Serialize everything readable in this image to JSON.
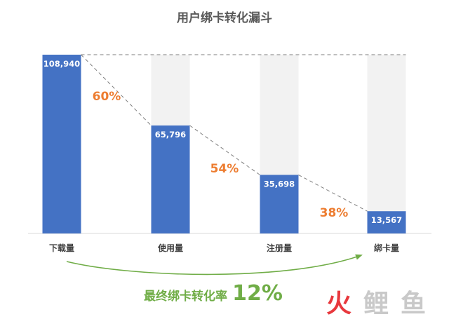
{
  "chart_data": {
    "type": "bar",
    "title": "用户绑卡转化漏斗",
    "categories": [
      "下载量",
      "使用量",
      "注册量",
      "绑卡量"
    ],
    "values": [
      108940,
      65796,
      35698,
      13567
    ],
    "value_labels": [
      "108,940",
      "65,796",
      "35,698",
      "13,567"
    ],
    "step_rates": [
      "60%",
      "54%",
      "38%"
    ],
    "final_rate_label": "最终绑卡转化率",
    "final_rate_value": "12%",
    "ylim": [
      0,
      108940
    ],
    "grid": false,
    "legend": "none",
    "colors": {
      "bar": "#4472c4",
      "background_bar": "#f2f2f2",
      "rate": "#ed7d31",
      "final": "#70ad47",
      "dash": "#7f7f7f"
    }
  },
  "watermark": {
    "chars": [
      "火",
      "鲤",
      "鱼"
    ],
    "colors": [
      "#e8383d",
      "#c9c9c9",
      "#c9c9c9"
    ]
  }
}
